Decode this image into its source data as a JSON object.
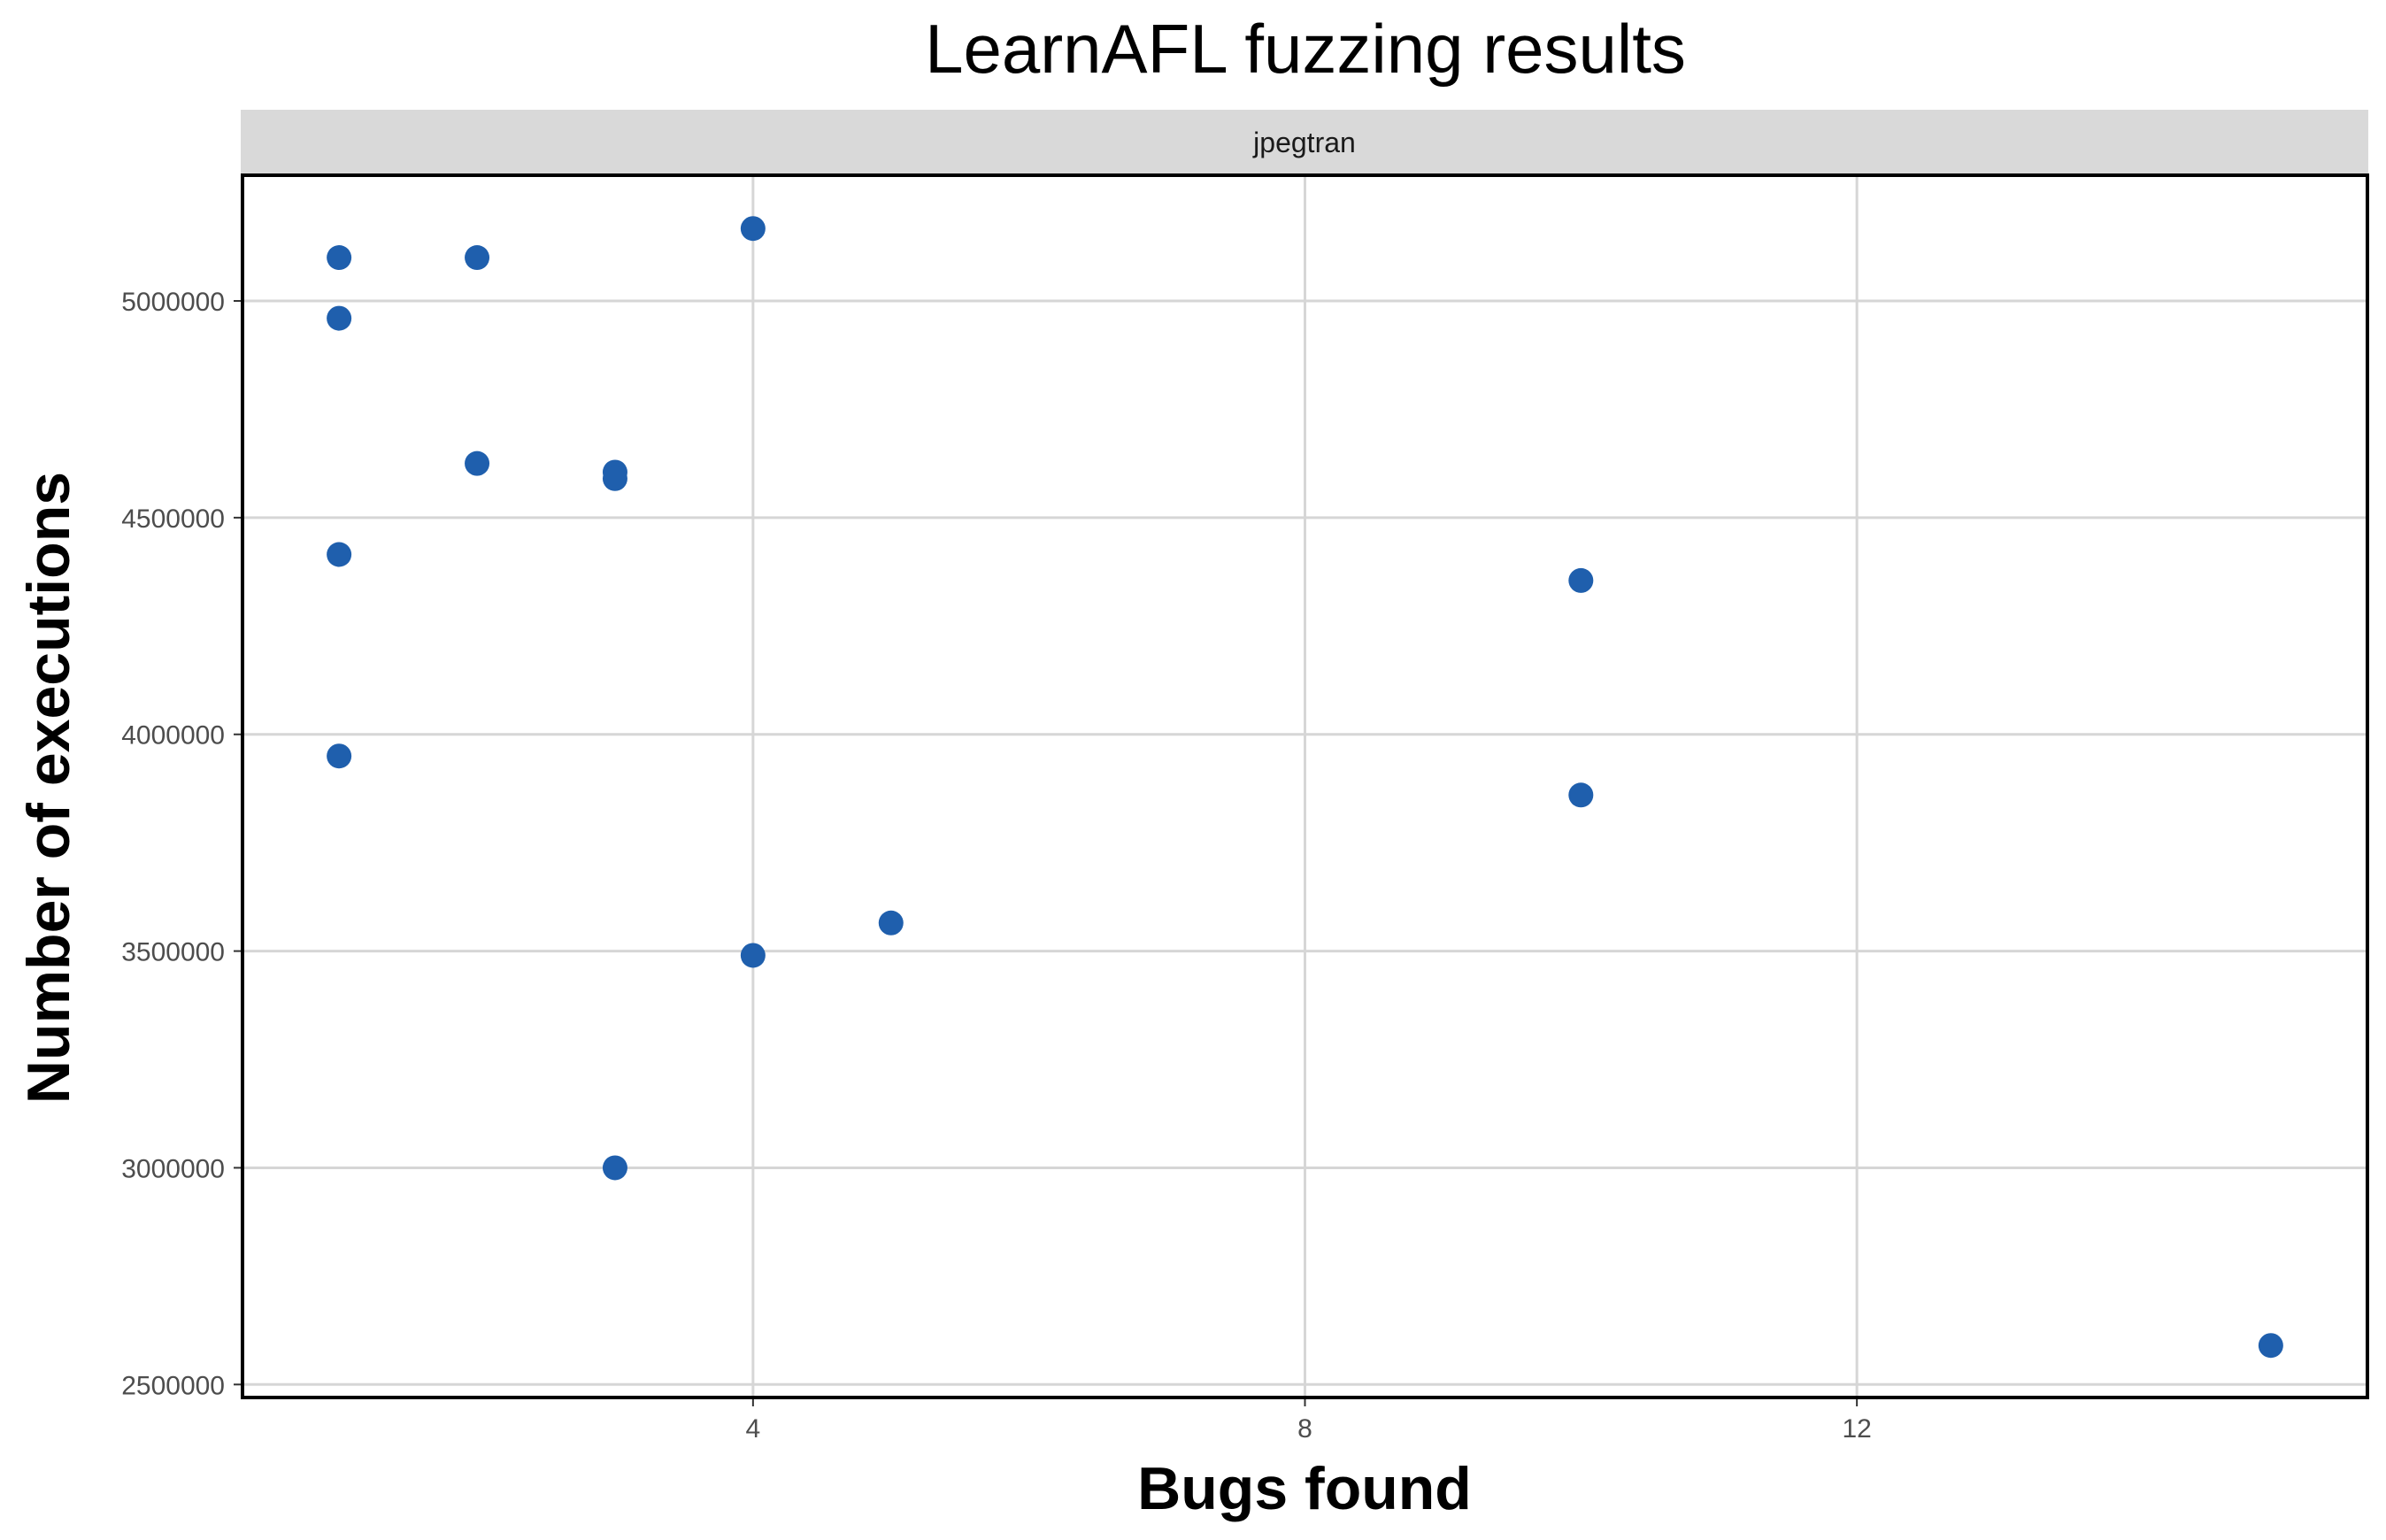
{
  "chart_data": {
    "type": "scatter",
    "title": "LearnAFL fuzzing results",
    "facet": "jpegtran",
    "xlabel": "Bugs found",
    "ylabel": "Number of executions",
    "xlim": [
      0.3,
      15.7
    ],
    "ylim": [
      2470000,
      5290000
    ],
    "xticks": [
      4,
      8,
      12
    ],
    "yticks": [
      2500000,
      3000000,
      3500000,
      4000000,
      4500000,
      5000000
    ],
    "grid": true,
    "point_color": "#1f5fad",
    "points": [
      {
        "x": 1,
        "y": 5100000
      },
      {
        "x": 1,
        "y": 4960000
      },
      {
        "x": 1,
        "y": 4415000
      },
      {
        "x": 1,
        "y": 3950000
      },
      {
        "x": 2,
        "y": 5100000
      },
      {
        "x": 2,
        "y": 4625000
      },
      {
        "x": 3,
        "y": 4605000
      },
      {
        "x": 3,
        "y": 4590000
      },
      {
        "x": 3,
        "y": 3000000
      },
      {
        "x": 4,
        "y": 5167000
      },
      {
        "x": 4,
        "y": 3490000
      },
      {
        "x": 5,
        "y": 3565000
      },
      {
        "x": 10,
        "y": 4355000
      },
      {
        "x": 10,
        "y": 3860000
      },
      {
        "x": 15,
        "y": 2590000
      }
    ]
  }
}
